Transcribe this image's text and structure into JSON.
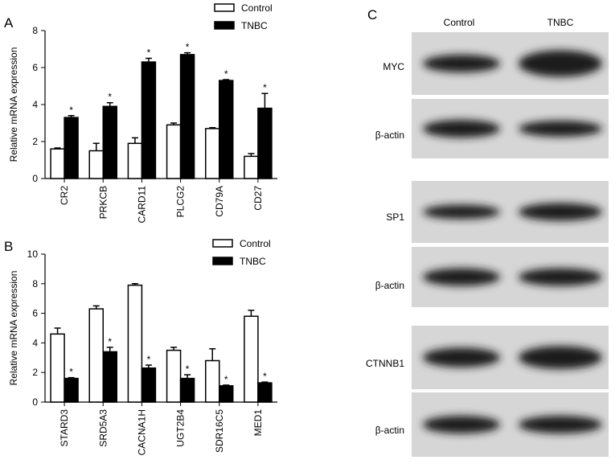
{
  "chart_data": [
    {
      "type": "bar",
      "panel_label": "A",
      "y_label": "Relative mRNA expression",
      "categories": [
        "CR2",
        "PRKCB",
        "CARD11",
        "PLCG2",
        "CD79A",
        "CD27"
      ],
      "series": [
        {
          "name": "Control",
          "color": "#ffffff",
          "values": [
            1.6,
            1.5,
            1.9,
            2.9,
            2.7,
            1.2
          ],
          "errors": [
            0.05,
            0.4,
            0.3,
            0.1,
            0.05,
            0.15
          ]
        },
        {
          "name": "TNBC",
          "color": "#000000",
          "values": [
            3.3,
            3.9,
            6.3,
            6.7,
            5.3,
            3.8
          ],
          "errors": [
            0.1,
            0.2,
            0.2,
            0.1,
            0.05,
            0.8
          ],
          "significance": [
            "*",
            "*",
            "*",
            "*",
            "*",
            "*"
          ]
        }
      ],
      "ylim": [
        0,
        8
      ],
      "yticks": [
        0,
        2,
        4,
        6,
        8
      ]
    },
    {
      "type": "bar",
      "panel_label": "B",
      "y_label": "Relative mRNA expression",
      "categories": [
        "STARD3",
        "SRD5A3",
        "CACNA1H",
        "UGT2B4",
        "SDR16C5",
        "MED1"
      ],
      "series": [
        {
          "name": "Control",
          "color": "#ffffff",
          "values": [
            4.6,
            6.3,
            7.9,
            3.5,
            2.8,
            5.8
          ],
          "errors": [
            0.4,
            0.2,
            0.1,
            0.2,
            0.8,
            0.4
          ]
        },
        {
          "name": "TNBC",
          "color": "#000000",
          "values": [
            1.6,
            3.4,
            2.3,
            1.6,
            1.1,
            1.3
          ],
          "errors": [
            0.05,
            0.3,
            0.2,
            0.25,
            0.05,
            0.05
          ],
          "significance": [
            "*",
            "*",
            "*",
            "*",
            "*",
            "*"
          ]
        }
      ],
      "ylim": [
        0,
        10
      ],
      "yticks": [
        0,
        2,
        4,
        6,
        8,
        10
      ]
    }
  ],
  "blot": {
    "panel_label": "C",
    "columns": [
      "Control",
      "TNBC"
    ],
    "rows": [
      "MYC",
      "β-actin",
      "SP1",
      "β-actin",
      "CTNNB1",
      "β-actin"
    ]
  }
}
